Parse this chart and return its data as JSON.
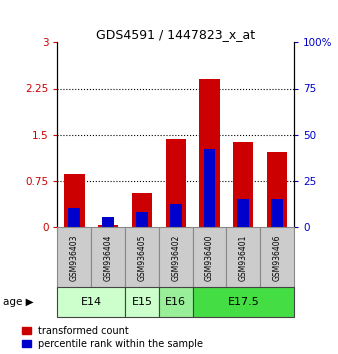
{
  "title": "GDS4591 / 1447823_x_at",
  "samples": [
    "GSM936403",
    "GSM936404",
    "GSM936405",
    "GSM936402",
    "GSM936400",
    "GSM936401",
    "GSM936406"
  ],
  "red_values": [
    0.85,
    0.02,
    0.55,
    1.42,
    2.4,
    1.38,
    1.22
  ],
  "blue_pct": [
    10,
    5,
    8,
    12,
    42,
    15,
    15
  ],
  "age_groups": [
    {
      "label": "E14",
      "start": 0,
      "end": 2,
      "color": "#ccffcc"
    },
    {
      "label": "E15",
      "start": 2,
      "end": 3,
      "color": "#ccffcc"
    },
    {
      "label": "E16",
      "start": 3,
      "end": 4,
      "color": "#99ee99"
    },
    {
      "label": "E17.5",
      "start": 4,
      "end": 7,
      "color": "#44dd44"
    }
  ],
  "ylim_left": [
    0,
    3
  ],
  "ylim_right": [
    0,
    100
  ],
  "yticks_left": [
    0,
    0.75,
    1.5,
    2.25,
    3
  ],
  "yticks_right": [
    0,
    25,
    50,
    75,
    100
  ],
  "bar_width": 0.6,
  "blue_bar_width": 0.35,
  "red_color": "#cc0000",
  "blue_color": "#0000cc",
  "sample_bg_color": "#cccccc",
  "sample_edge_color": "#888888",
  "age_edge_color": "#444444",
  "legend_red_label": "transformed count",
  "legend_blue_label": "percentile rank within the sample",
  "title_fontsize": 9,
  "tick_fontsize": 7.5,
  "sample_fontsize": 5.5,
  "age_fontsize": 8,
  "legend_fontsize": 7
}
